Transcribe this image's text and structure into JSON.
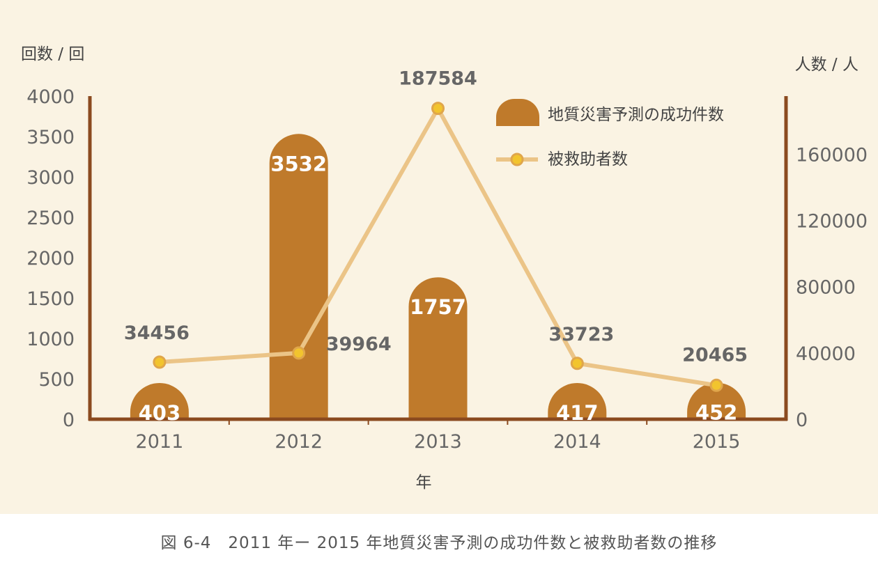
{
  "chart_data": {
    "type": "bar",
    "categories": [
      "2011",
      "2012",
      "2013",
      "2014",
      "2015"
    ],
    "xlabel": "年",
    "y_left": {
      "label": "回数 / 回",
      "ylim": [
        0,
        4000
      ],
      "ticks": [
        0,
        500,
        1000,
        1500,
        2000,
        2500,
        3000,
        3500,
        4000
      ]
    },
    "y_right": {
      "label": "人数 / 人",
      "ylim": [
        0,
        195000
      ],
      "ticks": [
        0,
        40000,
        80000,
        120000,
        160000
      ]
    },
    "series": [
      {
        "name": "地質災害予測の成功件数",
        "type": "bar",
        "axis": "left",
        "values": [
          403,
          3532,
          1757,
          417,
          452
        ],
        "color": "#bf7a2b"
      },
      {
        "name": "被救助者数",
        "type": "line",
        "axis": "right",
        "values": [
          34456,
          39964,
          187584,
          33723,
          20465
        ],
        "color": "#ebc487",
        "marker_color": "#f2c42e"
      }
    ],
    "legend": "top-right",
    "grid": false,
    "axis_color": "#8b4a1f"
  },
  "caption": "図 6-4　2011 年ー 2015 年地質災害予測の成功件数と被救助者数の推移"
}
